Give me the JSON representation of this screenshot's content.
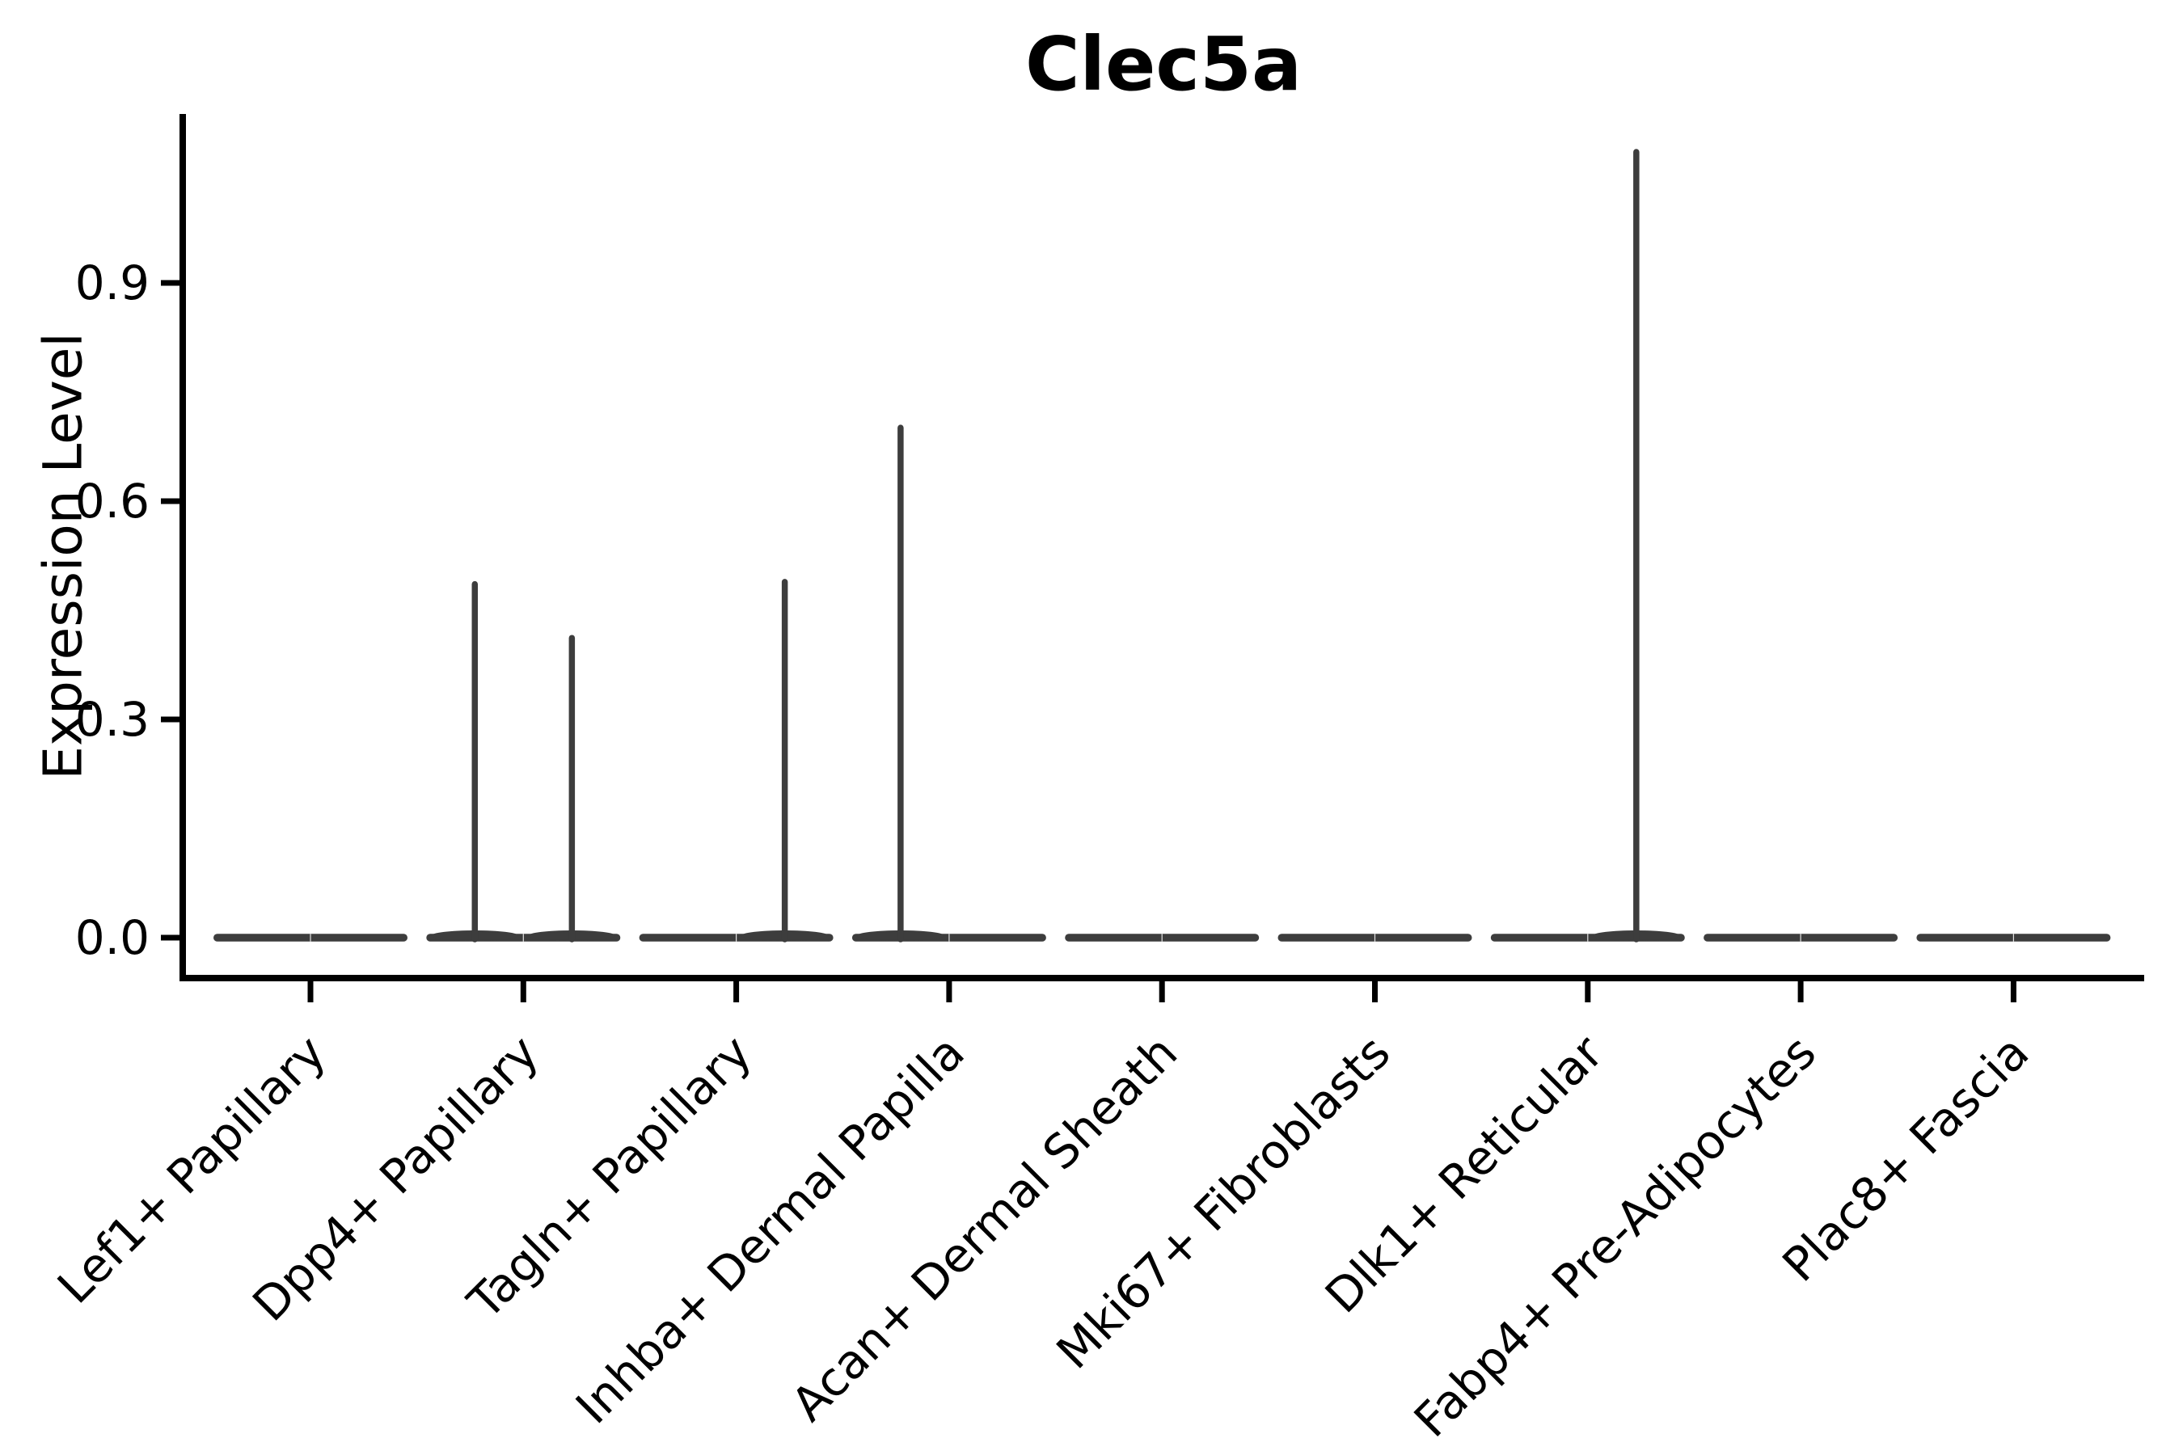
{
  "figure": {
    "title": "Clec5a"
  },
  "chart_data": {
    "type": "violin",
    "title": "Clec5a",
    "xlabel": "",
    "ylabel": "Expression Level",
    "ylim": [
      -0.056,
      1.128
    ],
    "grid": false,
    "legend": "none",
    "yticks_labels": [
      "0.0",
      "0.3",
      "0.6",
      "0.9"
    ],
    "ytick_values": [
      0.0,
      0.3,
      0.6,
      0.9
    ],
    "categories": [
      "Lef1+ Papillary",
      "Dpp4+ Papillary",
      "Tagln+ Papillary",
      "Inhba+ Dermal Papilla",
      "Acan+ Dermal Sheath",
      "Mki67+ Fibroblasts",
      "Dlk1+ Reticular",
      "Fabp4+ Pre-Adipocytes",
      "Plac8+ Fascia"
    ],
    "violins": [
      {
        "category": "Lef1+ Papillary",
        "baseline_value": 0,
        "spikes": []
      },
      {
        "category": "Dpp4+ Papillary",
        "baseline_value": 0,
        "spikes": [
          {
            "offset": -0.228,
            "value": 0.486
          },
          {
            "offset": 0.228,
            "value": 0.412
          }
        ]
      },
      {
        "category": "Tagln+ Papillary",
        "baseline_value": 0,
        "spikes": [
          {
            "offset": 0.228,
            "value": 0.489
          }
        ]
      },
      {
        "category": "Inhba+ Dermal Papilla",
        "baseline_value": 0,
        "spikes": [
          {
            "offset": -0.228,
            "value": 0.701
          }
        ]
      },
      {
        "category": "Acan+ Dermal Sheath",
        "baseline_value": 0,
        "spikes": []
      },
      {
        "category": "Mki67+ Fibroblasts",
        "baseline_value": 0,
        "spikes": []
      },
      {
        "category": "Dlk1+ Reticular",
        "baseline_value": 0,
        "spikes": [
          {
            "offset": 0.228,
            "value": 1.08
          }
        ]
      },
      {
        "category": "Fabp4+ Pre-Adipocytes",
        "baseline_value": 0,
        "spikes": []
      },
      {
        "category": "Plac8+ Fascia",
        "baseline_value": 0,
        "spikes": []
      }
    ],
    "violin_width": 0.912,
    "colors": {
      "violin": "#3d3d3d",
      "axis": "#000000",
      "text": "#000000",
      "background": "#ffffff"
    }
  }
}
